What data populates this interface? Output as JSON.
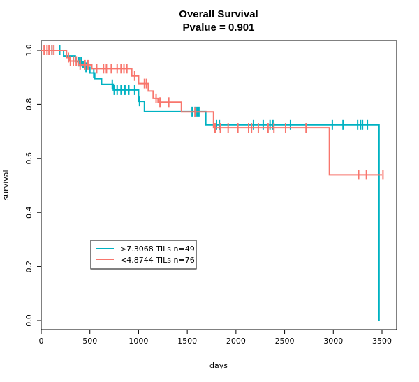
{
  "chart_data": {
    "type": "line",
    "title": "Overall Survival",
    "subtitle": "Pvalue = 0.901",
    "xlabel": "days",
    "ylabel": "survival",
    "xlim": [
      0,
      3600
    ],
    "ylim": [
      0,
      1
    ],
    "x_ticks": [
      0,
      500,
      1000,
      1500,
      2000,
      2500,
      3000,
      3500
    ],
    "y_ticks": [
      0.0,
      0.2,
      0.4,
      0.6,
      0.8,
      1.0
    ],
    "y_tick_labels": [
      "0.0",
      "0.2",
      "0.4",
      "0.6",
      "0.8",
      "1.0"
    ],
    "grid": false,
    "legend_position": "bottom-left",
    "series": [
      {
        "name": ">7.3068 TILs n=49",
        "color": "#00b2c2",
        "steps": [
          [
            0,
            1.0
          ],
          [
            230,
            0.979
          ],
          [
            350,
            0.958
          ],
          [
            400,
            0.958
          ],
          [
            430,
            0.937
          ],
          [
            500,
            0.916
          ],
          [
            550,
            0.895
          ],
          [
            620,
            0.874
          ],
          [
            740,
            0.853
          ],
          [
            1000,
            0.811
          ],
          [
            1060,
            0.773
          ],
          [
            1420,
            0.773
          ],
          [
            1690,
            0.724
          ],
          [
            3470,
            0.0
          ]
        ],
        "censor_x": [
          110,
          190,
          380,
          395,
          410,
          460,
          540,
          730,
          750,
          780,
          820,
          860,
          900,
          960,
          1010,
          1550,
          1580,
          1600,
          1620,
          1800,
          1830,
          2180,
          2280,
          2350,
          2380,
          2560,
          2990,
          3100,
          3250,
          3280,
          3300,
          3350
        ]
      },
      {
        "name": "<4.8744 TILs n=76",
        "color": "#f8766d",
        "steps": [
          [
            0,
            1.0
          ],
          [
            260,
            0.973
          ],
          [
            290,
            0.96
          ],
          [
            380,
            0.946
          ],
          [
            480,
            0.946
          ],
          [
            520,
            0.932
          ],
          [
            600,
            0.932
          ],
          [
            930,
            0.905
          ],
          [
            1000,
            0.877
          ],
          [
            1100,
            0.849
          ],
          [
            1150,
            0.822
          ],
          [
            1200,
            0.808
          ],
          [
            1440,
            0.772
          ],
          [
            1600,
            0.772
          ],
          [
            1770,
            0.713
          ],
          [
            2960,
            0.713
          ],
          [
            2960,
            0.539
          ],
          [
            3500,
            0.539
          ]
        ],
        "censor_x": [
          30,
          60,
          80,
          110,
          130,
          280,
          300,
          330,
          360,
          400,
          450,
          480,
          570,
          640,
          670,
          720,
          780,
          820,
          850,
          880,
          960,
          1060,
          1080,
          1180,
          1220,
          1310,
          1580,
          1780,
          1790,
          1840,
          1920,
          2020,
          2130,
          2160,
          2230,
          2330,
          2390,
          2510,
          2720,
          3260,
          3340,
          3510
        ]
      }
    ]
  }
}
